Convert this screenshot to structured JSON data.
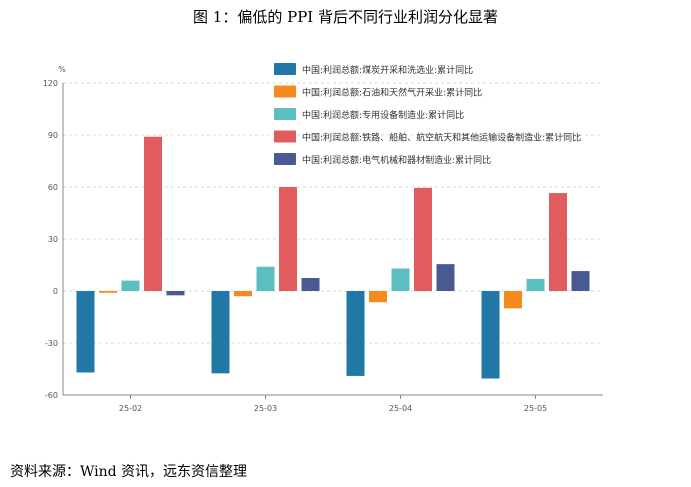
{
  "page": {
    "title": "图 1：偏低的 PPI 背后不同行业利润分化显著",
    "source": "资料来源：Wind 资讯，远东资信整理"
  },
  "chart_data": {
    "type": "bar",
    "title": "",
    "xlabel": "",
    "ylabel": "%",
    "categories": [
      "25-02",
      "25-03",
      "25-04",
      "25-05"
    ],
    "y_ticks": [
      120,
      90,
      60,
      30,
      0,
      -30,
      -60
    ],
    "ylim": [
      -60,
      120
    ],
    "grid": true,
    "legend_position": "top-right",
    "series": [
      {
        "name": "中国:利润总额:煤炭开采和洗选业:累计同比",
        "color": "#2178a6",
        "values": [
          -47,
          -47.5,
          -49,
          -50.5
        ]
      },
      {
        "name": "中国:利润总额:石油和天然气开采业:累计同比",
        "color": "#f58a1f",
        "values": [
          -1,
          -3,
          -6.5,
          -10
        ]
      },
      {
        "name": "中国:利润总额:专用设备制造业:累计同比",
        "color": "#5bbfc2",
        "values": [
          6,
          14,
          13,
          7
        ]
      },
      {
        "name": "中国:利润总额:铁路、船舶、航空航天和其他运输设备制造业:累计同比",
        "color": "#e05c5f",
        "values": [
          89,
          60,
          59.5,
          56.5
        ]
      },
      {
        "name": "中国:利润总额:电气机械和器材制造业:累计同比",
        "color": "#485a91",
        "values": [
          -2.5,
          7.5,
          15.5,
          11.5
        ]
      }
    ]
  }
}
